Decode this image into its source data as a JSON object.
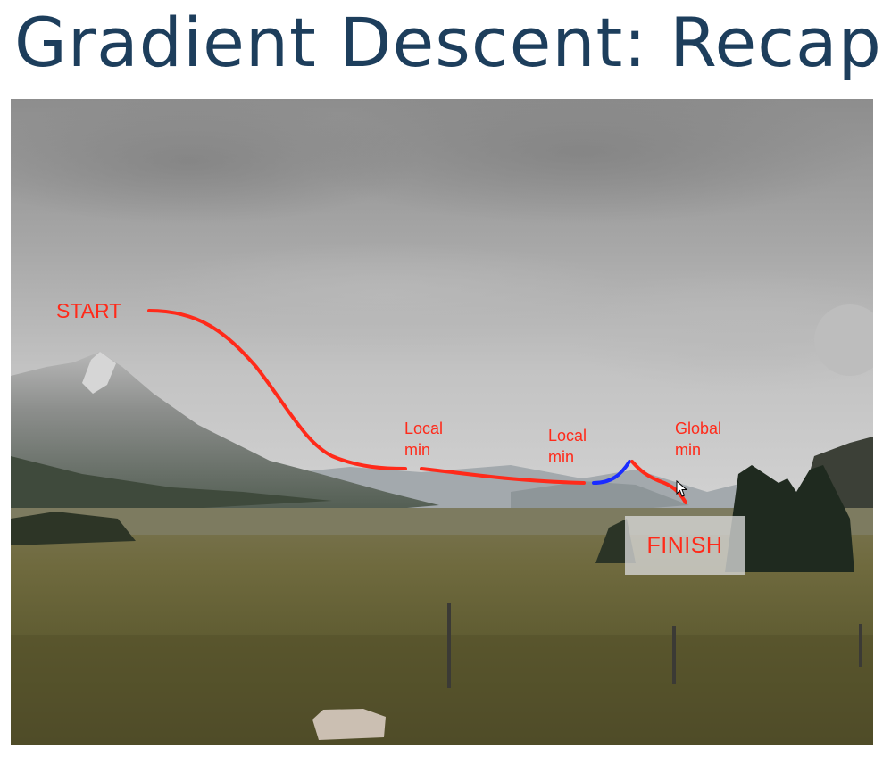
{
  "slide": {
    "title": "Gradient Descent: Recap",
    "title_color": "#1d3e5c"
  },
  "annotations": {
    "start": "START",
    "local_min_1": [
      "Local",
      "min"
    ],
    "local_min_2": [
      "Local",
      "min"
    ],
    "global_min": [
      "Global",
      "min"
    ],
    "finish": "FINISH",
    "path_color": "#ff2a1a",
    "highlight_color": "#1a2cff"
  },
  "photo": {
    "description_icon": "mountain-landscape-photo"
  },
  "cursor": {
    "icon": "mouse-pointer-icon"
  }
}
